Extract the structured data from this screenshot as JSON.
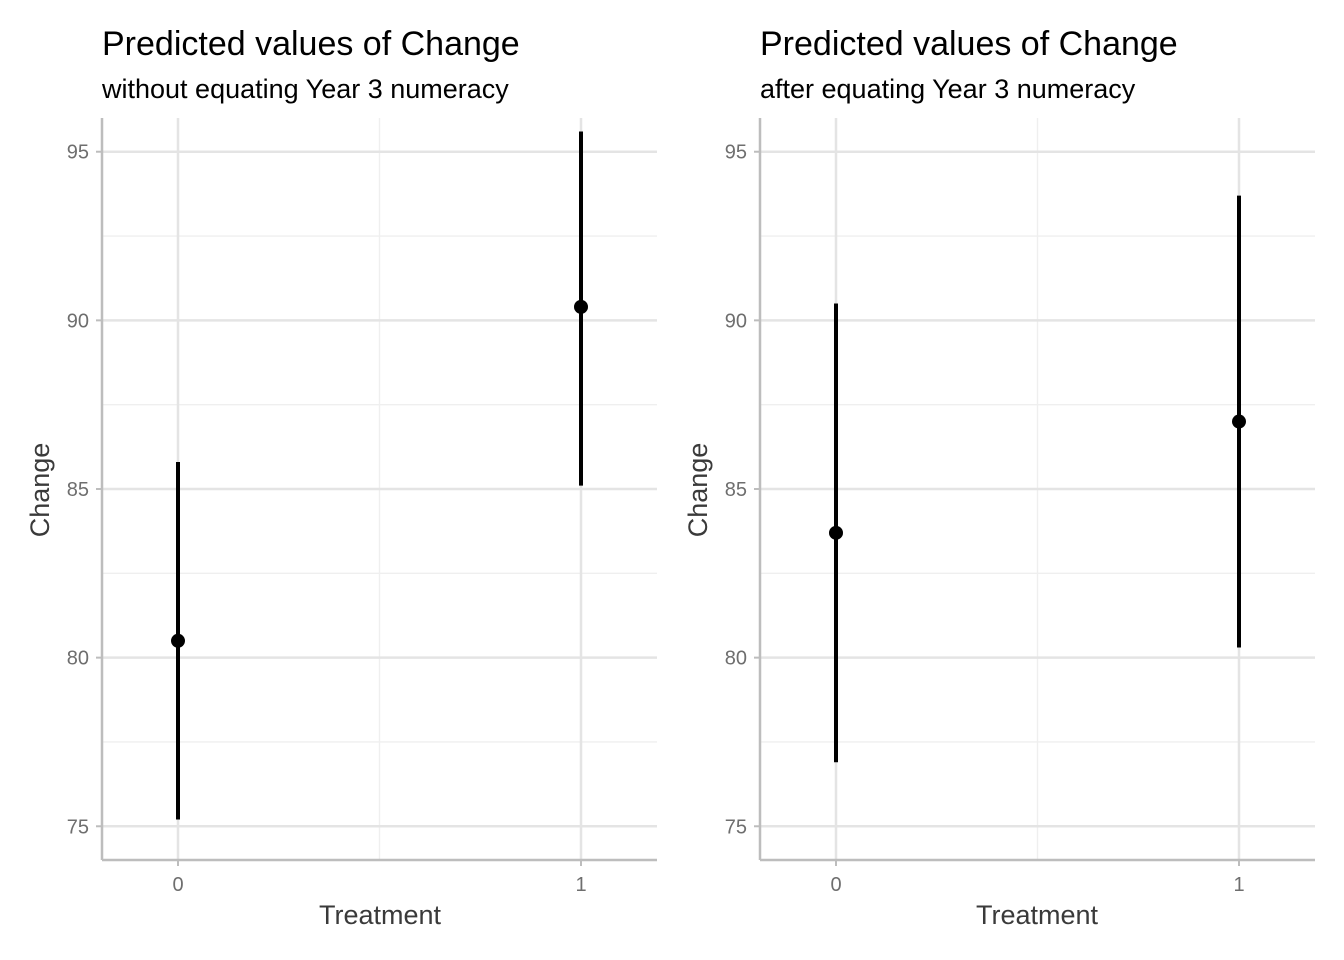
{
  "chart_data": [
    {
      "type": "scatter",
      "subtype": "pointrange",
      "title": "Predicted values of Change",
      "subtitle": "without equating Year 3 numeracy",
      "xlabel": "Treatment",
      "ylabel": "Change",
      "categories": [
        "0",
        "1"
      ],
      "yticks": [
        75,
        80,
        85,
        90,
        95
      ],
      "ylim": [
        74,
        96
      ],
      "grid": true,
      "points": [
        {
          "x": "0",
          "y": 80.5,
          "ymin": 75.2,
          "ymax": 85.8
        },
        {
          "x": "1",
          "y": 90.4,
          "ymin": 85.1,
          "ymax": 95.6
        }
      ]
    },
    {
      "type": "scatter",
      "subtype": "pointrange",
      "title": "Predicted values of Change",
      "subtitle": "after equating Year 3 numeracy",
      "xlabel": "Treatment",
      "ylabel": "Change",
      "categories": [
        "0",
        "1"
      ],
      "yticks": [
        75,
        80,
        85,
        90,
        95
      ],
      "ylim": [
        74,
        96
      ],
      "grid": true,
      "points": [
        {
          "x": "0",
          "y": 83.7,
          "ymin": 76.9,
          "ymax": 90.5
        },
        {
          "x": "1",
          "y": 87.0,
          "ymin": 80.3,
          "ymax": 93.7
        }
      ]
    }
  ],
  "colors": {
    "point": "#000000",
    "errorbar": "#000000"
  }
}
